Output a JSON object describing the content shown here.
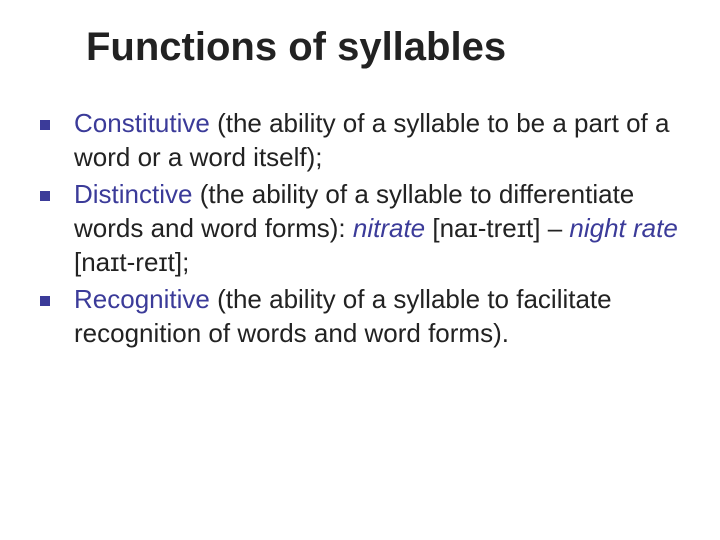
{
  "title": "Functions of syllables",
  "bullets": [
    {
      "term": "Constitutive",
      "rest": " (the ability of a syllable to be a part of a word or a word itself);"
    },
    {
      "term": "Distinctive",
      "rest_a": " (the ability of a syllable to differentiate words and word forms): ",
      "ex1": "nitrate",
      "ph1": " [naɪ-treɪt] – ",
      "ex2": "night rate",
      "ph2": " [naɪt-reɪt];"
    },
    {
      "term": "Recognitive",
      "rest": " (the ability of a syllable to facilitate recognition of words and word forms)."
    }
  ],
  "colors": {
    "accent": "#3b3b99",
    "text": "#222222",
    "background": "#ffffff"
  }
}
